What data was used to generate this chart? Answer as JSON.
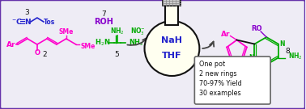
{
  "bg_color": "#eeecf5",
  "border_color": "#6633aa",
  "color_magenta": "#ff00cc",
  "color_green": "#00aa00",
  "color_blue": "#2222cc",
  "color_purple": "#8800cc",
  "color_black": "#111111",
  "box_text_lines": [
    "One pot",
    "2 new rings",
    "70-97% Yield",
    "30 examples"
  ],
  "flask_nah": "NaH",
  "flask_thf": "THF"
}
